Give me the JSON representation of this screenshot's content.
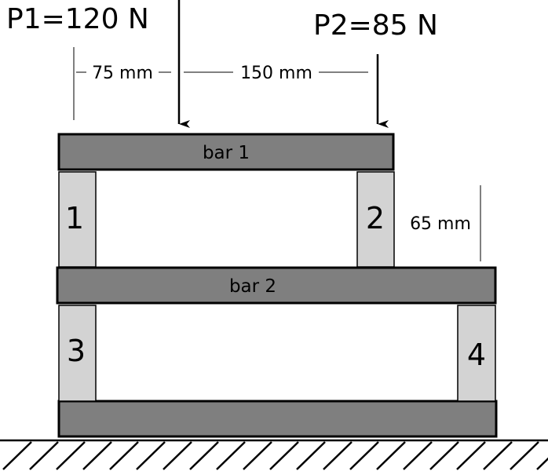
{
  "loads": {
    "p1": "P1=120 N",
    "p2": "P2=85 N"
  },
  "dimensions": {
    "d1": "75 mm",
    "d2": "150 mm",
    "height": "65 mm"
  },
  "bars": {
    "bar1": "bar 1",
    "bar2": "bar 2"
  },
  "posts": [
    "1",
    "2",
    "3",
    "4"
  ],
  "colors": {
    "bar_fill": "#7f7f7f",
    "post_fill": "#d3d3d3"
  }
}
